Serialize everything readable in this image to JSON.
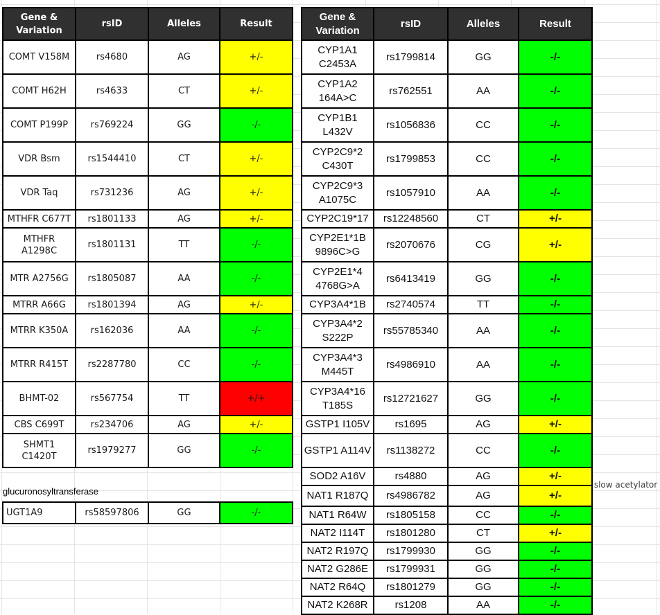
{
  "colors": {
    "header_bg": "#303030",
    "header_text": "#ffffff",
    "cell_border": "#000000",
    "green": "#00ff00",
    "yellow": "#ffff00",
    "red": "#ff0000",
    "grid_line": "#e4e4e4",
    "page_bg": "#ffffff"
  },
  "result_color_map": {
    "+/-": "yellow",
    "-/-": "green",
    "+/+": "red"
  },
  "columns": {
    "gene": "Gene &\nVariation",
    "rsid": "rsID",
    "alleles": "Alleles",
    "result": "Result"
  },
  "left_table": {
    "rows": [
      {
        "gene": "COMT V158M",
        "rsid": "rs4680",
        "alleles": "AG",
        "result": "+/-",
        "size": "tall"
      },
      {
        "gene": "COMT H62H",
        "rsid": "rs4633",
        "alleles": "CT",
        "result": "+/-",
        "size": "tall"
      },
      {
        "gene": "COMT P199P",
        "rsid": "rs769224",
        "alleles": "GG",
        "result": "-/-",
        "size": "tall"
      },
      {
        "gene": "VDR Bsm",
        "rsid": "rs1544410",
        "alleles": "CT",
        "result": "+/-",
        "size": "tall"
      },
      {
        "gene": "VDR Taq",
        "rsid": "rs731236",
        "alleles": "AG",
        "result": "+/-",
        "size": "tall"
      },
      {
        "gene": "MTHFR C677T",
        "rsid": "rs1801133",
        "alleles": "AG",
        "result": "+/-",
        "size": "short"
      },
      {
        "gene": "MTHFR\nA1298C",
        "rsid": "rs1801131",
        "alleles": "TT",
        "result": "-/-",
        "size": "tall"
      },
      {
        "gene": "MTR A2756G",
        "rsid": "rs1805087",
        "alleles": "AA",
        "result": "-/-",
        "size": "tall"
      },
      {
        "gene": "MTRR A66G",
        "rsid": "rs1801394",
        "alleles": "AG",
        "result": "+/-",
        "size": "short"
      },
      {
        "gene": "MTRR K350A",
        "rsid": "rs162036",
        "alleles": "AA",
        "result": "-/-",
        "size": "tall"
      },
      {
        "gene": "MTRR R415T",
        "rsid": "rs2287780",
        "alleles": "CC",
        "result": "-/-",
        "size": "tall"
      },
      {
        "gene": "BHMT-02",
        "rsid": "rs567754",
        "alleles": "TT",
        "result": "+/+",
        "size": "tall"
      },
      {
        "gene": "CBS C699T",
        "rsid": "rs234706",
        "alleles": "AG",
        "result": "+/-",
        "size": "short"
      },
      {
        "gene": "SHMT1\nC1420T",
        "rsid": "rs1979277",
        "alleles": "GG",
        "result": "-/-",
        "size": "tall"
      }
    ]
  },
  "glucuronosyltransferase_section": {
    "label": "glucuronosyltransferase",
    "rows": [
      {
        "gene": "UGT1A9",
        "rsid": "rs58597806",
        "alleles": "GG",
        "result": "-/-",
        "size": "ugt"
      }
    ]
  },
  "right_table": {
    "rows": [
      {
        "gene": "CYP1A1\nC2453A",
        "rsid": "rs1799814",
        "alleles": "GG",
        "result": "-/-",
        "size": "tall"
      },
      {
        "gene": "CYP1A2\n164A>C",
        "rsid": "rs762551",
        "alleles": "AA",
        "result": "-/-",
        "size": "tall"
      },
      {
        "gene": "CYP1B1\nL432V",
        "rsid": "rs1056836",
        "alleles": "CC",
        "result": "-/-",
        "size": "tall"
      },
      {
        "gene": "CYP2C9*2\nC430T",
        "rsid": "rs1799853",
        "alleles": "CC",
        "result": "-/-",
        "size": "tall"
      },
      {
        "gene": "CYP2C9*3\nA1075C",
        "rsid": "rs1057910",
        "alleles": "AA",
        "result": "-/-",
        "size": "tall"
      },
      {
        "gene": "CYP2C19*17",
        "rsid": "rs12248560",
        "alleles": "CT",
        "result": "+/-",
        "size": "short"
      },
      {
        "gene": "CYP2E1*1B\n9896C>G",
        "rsid": "rs2070676",
        "alleles": "CG",
        "result": "+/-",
        "size": "tall"
      },
      {
        "gene": "CYP2E1*4\n4768G>A",
        "rsid": "rs6413419",
        "alleles": "GG",
        "result": "-/-",
        "size": "tall"
      },
      {
        "gene": "CYP3A4*1B",
        "rsid": "rs2740574",
        "alleles": "TT",
        "result": "-/-",
        "size": "short"
      },
      {
        "gene": "CYP3A4*2\nS222P",
        "rsid": "rs55785340",
        "alleles": "AA",
        "result": "-/-",
        "size": "tall"
      },
      {
        "gene": "CYP3A4*3\nM445T",
        "rsid": "rs4986910",
        "alleles": "AA",
        "result": "-/-",
        "size": "tall"
      },
      {
        "gene": "CYP3A4*16\nT185S",
        "rsid": "rs12721627",
        "alleles": "GG",
        "result": "-/-",
        "size": "tall"
      },
      {
        "gene": "GSTP1 I105V",
        "rsid": "rs1695",
        "alleles": "AG",
        "result": "+/-",
        "size": "short"
      },
      {
        "gene": "GSTP1 A114V",
        "rsid": "rs1138272",
        "alleles": "CC",
        "result": "-/-",
        "size": "tall"
      },
      {
        "gene": "SOD2 A16V",
        "rsid": "rs4880",
        "alleles": "AG",
        "result": "+/-",
        "size": "short"
      },
      {
        "gene": "NAT1 R187Q",
        "rsid": "rs4986782",
        "alleles": "AG",
        "result": "+/-",
        "size": "medium"
      },
      {
        "gene": "NAT1 R64W",
        "rsid": "rs1805158",
        "alleles": "CC",
        "result": "-/-",
        "size": "short"
      },
      {
        "gene": "NAT2 I114T",
        "rsid": "rs1801280",
        "alleles": "CT",
        "result": "+/-",
        "size": "short"
      },
      {
        "gene": "NAT2 R197Q",
        "rsid": "rs1799930",
        "alleles": "GG",
        "result": "-/-",
        "size": "short"
      },
      {
        "gene": "NAT2 G286E",
        "rsid": "rs1799931",
        "alleles": "GG",
        "result": "-/-",
        "size": "short"
      },
      {
        "gene": "NAT2 R64Q",
        "rsid": "rs1801279",
        "alleles": "GG",
        "result": "-/-",
        "size": "short"
      },
      {
        "gene": "NAT2 K268R",
        "rsid": "rs1208",
        "alleles": "AA",
        "result": "-/-",
        "size": "short"
      }
    ]
  },
  "annotation": {
    "text": "slow acetylator"
  }
}
